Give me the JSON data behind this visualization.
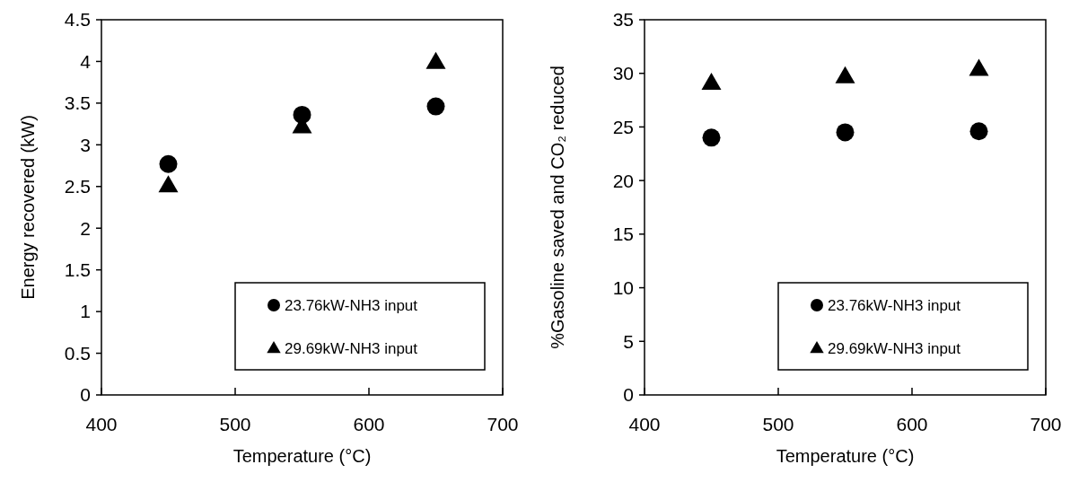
{
  "chart_data": [
    {
      "type": "scatter",
      "xlabel": "Temperature (°C)",
      "ylabel": "Energy recovered (kW)",
      "xlim": [
        400,
        700
      ],
      "xticks": [
        400,
        500,
        600,
        700
      ],
      "ylim": [
        0,
        4.5
      ],
      "yticks": [
        0,
        0.5,
        1,
        1.5,
        2,
        2.5,
        3,
        3.5,
        4,
        4.5
      ],
      "legend": "bottom right",
      "x": [
        450,
        550,
        650
      ],
      "series": [
        {
          "name": "23.76kW-NH3 input",
          "color": "#000000",
          "marker": "circle",
          "values": [
            2.77,
            3.36,
            3.46
          ]
        },
        {
          "name": "29.69kW-NH3 input",
          "color": "#000000",
          "marker": "triangle",
          "values": [
            2.51,
            3.22,
            3.99
          ]
        }
      ]
    },
    {
      "type": "scatter",
      "xlabel": "Temperature (°C)",
      "ylabel": "%Gasoline saved and CO₂ reduced",
      "xlim": [
        400,
        700
      ],
      "xticks": [
        400,
        500,
        600,
        700
      ],
      "ylim": [
        0,
        35
      ],
      "yticks": [
        0,
        5,
        10,
        15,
        20,
        25,
        30,
        35
      ],
      "legend": "bottom right",
      "x": [
        450,
        550,
        650
      ],
      "series": [
        {
          "name": "23.76kW-NH3 input",
          "color": "#000000",
          "marker": "circle",
          "values": [
            24.0,
            24.5,
            24.6
          ]
        },
        {
          "name": "29.69kW-NH3 input",
          "color": "#000000",
          "marker": "triangle",
          "values": [
            29.1,
            29.7,
            30.4
          ]
        }
      ]
    }
  ]
}
